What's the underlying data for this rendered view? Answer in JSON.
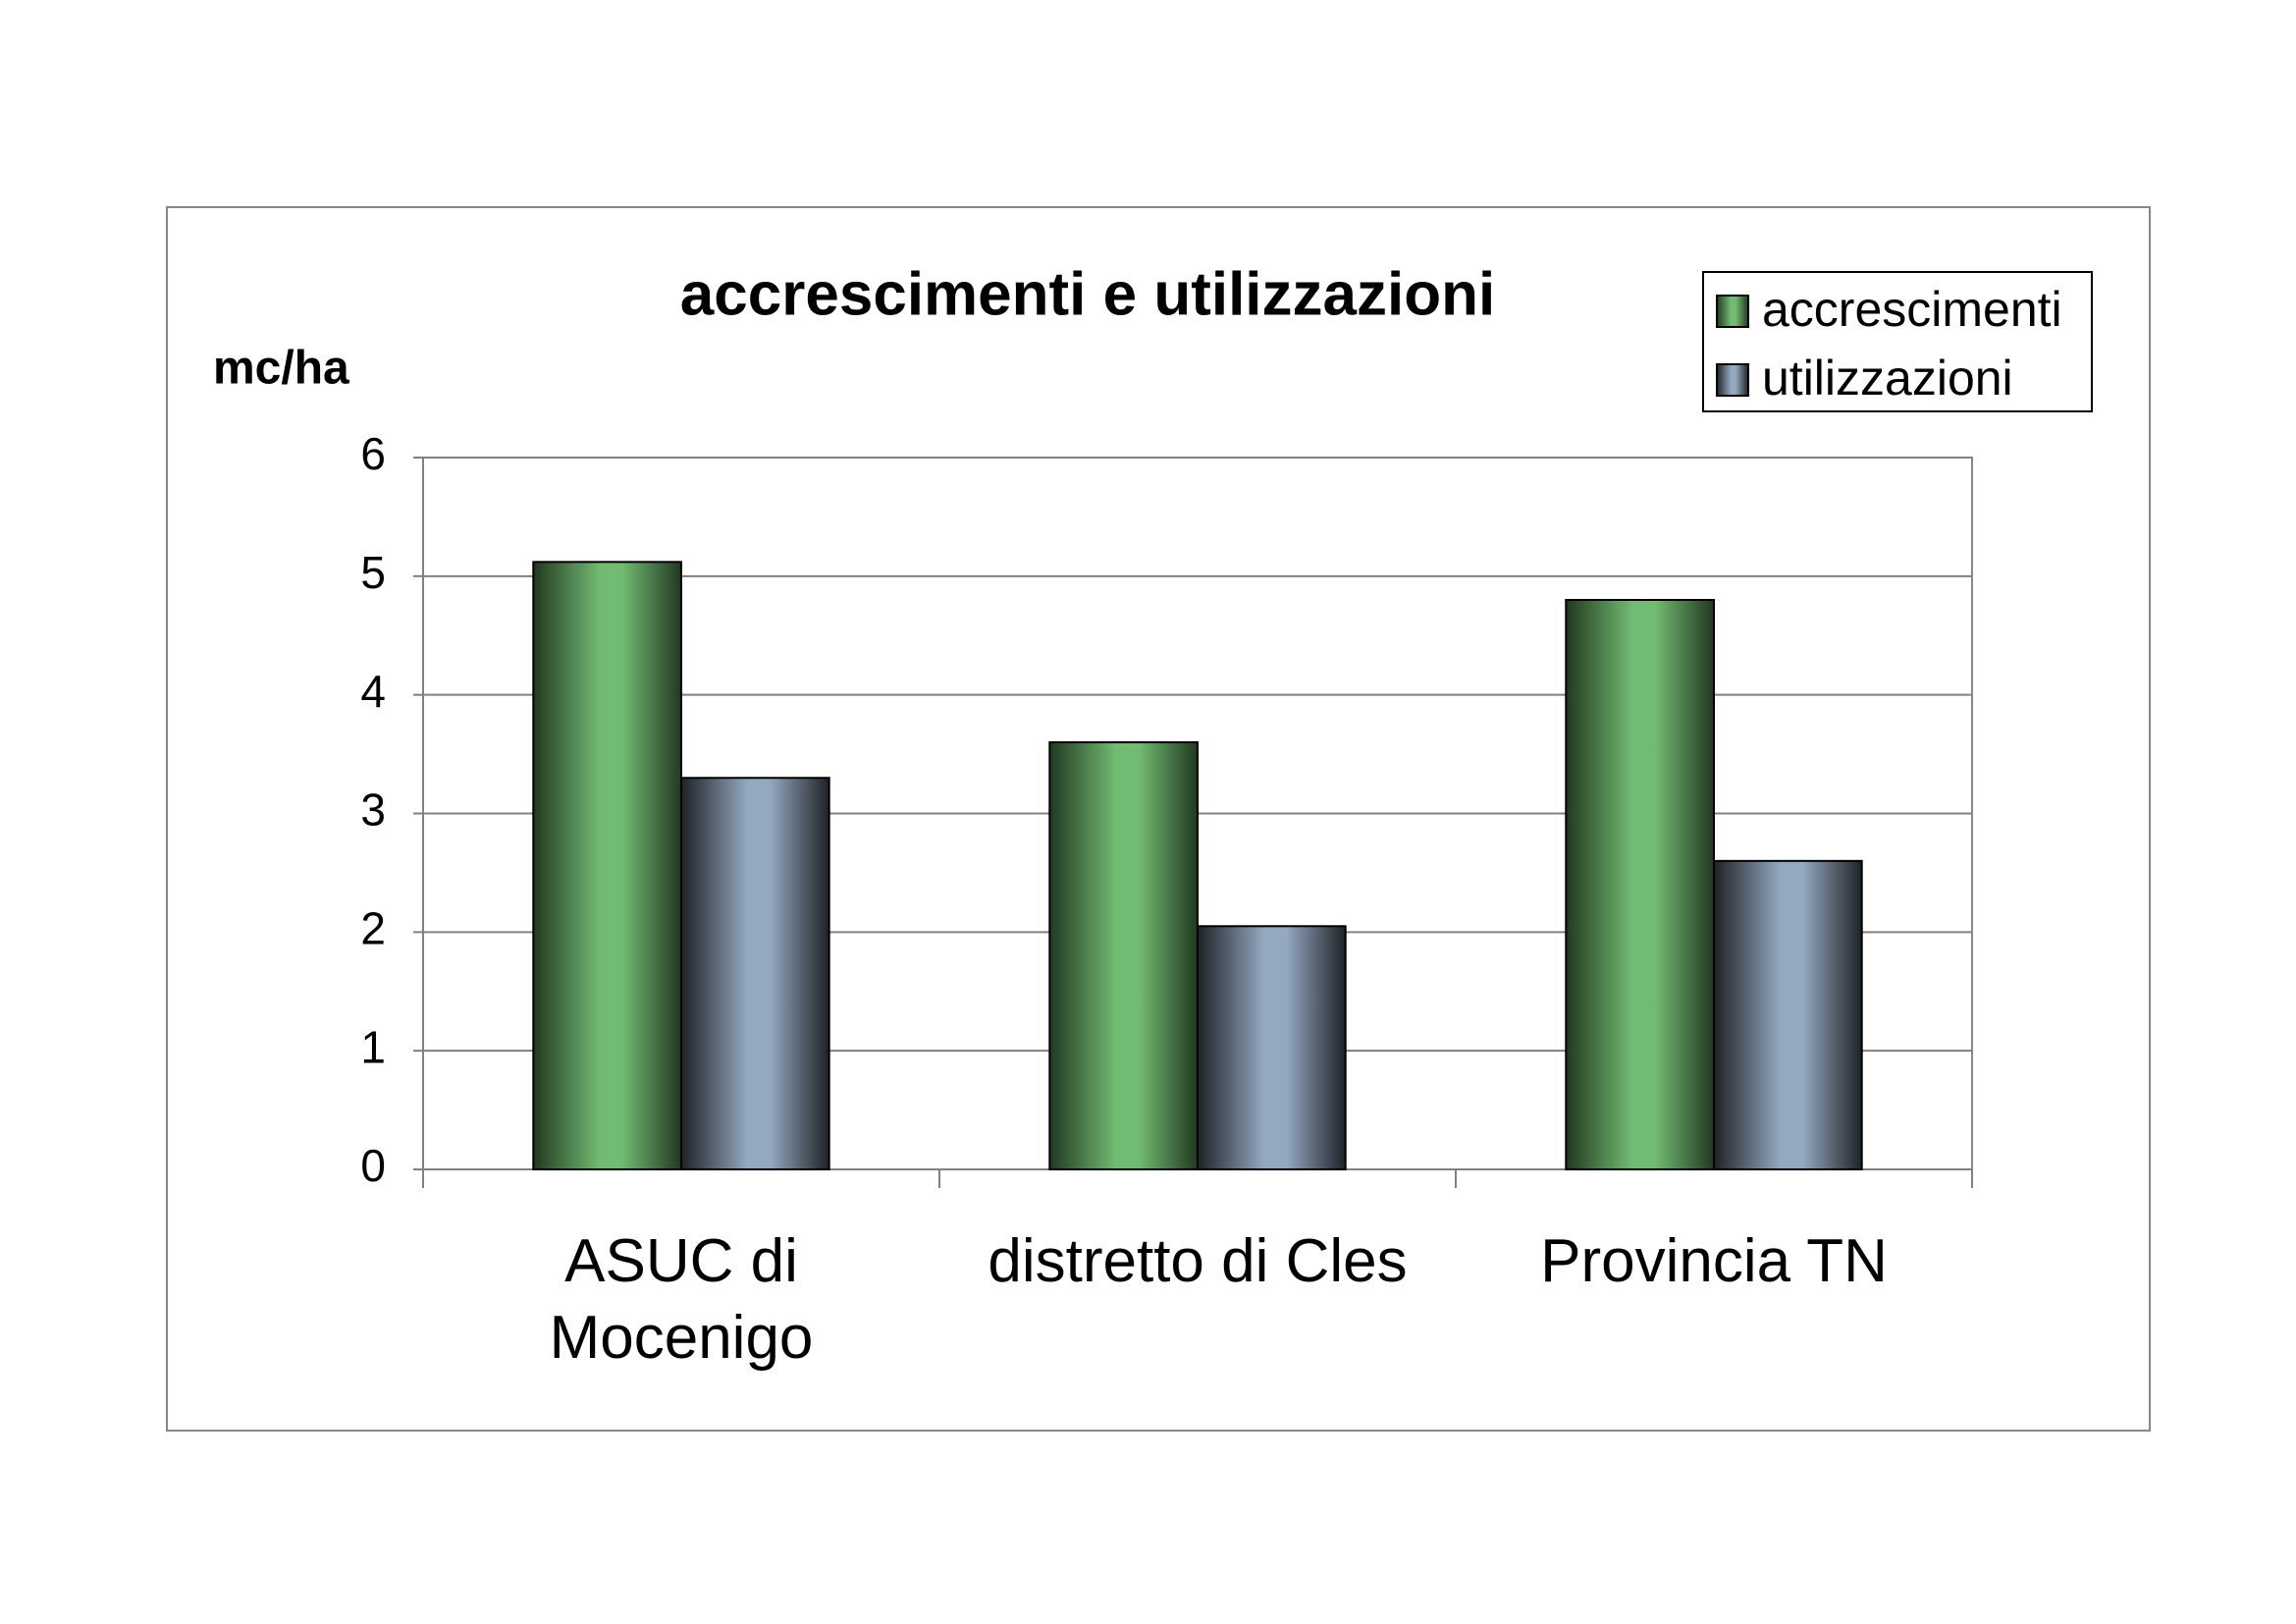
{
  "chart_data": {
    "type": "bar",
    "title": "accrescimenti e utilizzazioni",
    "y_label": "mc/ha",
    "categories": [
      "ASUC di\nMocenigo",
      "distretto di Cles",
      "Provincia TN"
    ],
    "series": [
      {
        "name": "accrescimenti",
        "color": "#72bb72",
        "values": [
          5.12,
          3.6,
          4.8
        ]
      },
      {
        "name": "utilizzazioni",
        "color": "#94a8c0",
        "values": [
          3.3,
          2.05,
          2.6
        ]
      }
    ],
    "ylim": [
      0,
      6
    ],
    "yticks": [
      0,
      1,
      2,
      3,
      4,
      5,
      6
    ],
    "grid": true,
    "legend": "top-right"
  }
}
